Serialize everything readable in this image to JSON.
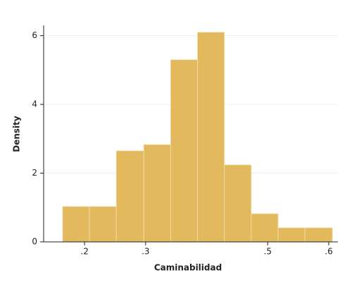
{
  "chart_data": {
    "type": "histogram",
    "xlabel": "Caminabilidad",
    "ylabel": "Density",
    "bins": [
      0.164,
      0.208,
      0.252,
      0.297,
      0.341,
      0.385,
      0.429,
      0.473,
      0.517,
      0.561,
      0.606
    ],
    "values": [
      1.03,
      1.03,
      2.65,
      2.83,
      5.3,
      6.1,
      2.24,
      0.82,
      0.41,
      0.41
    ],
    "color": "#e3b95e",
    "xlim": [
      0.133,
      0.615
    ],
    "xticks": [
      {
        "value": 0.2,
        "label": ".2"
      },
      {
        "value": 0.3,
        "label": ".3"
      },
      {
        "value": 0.5,
        "label": ".5"
      },
      {
        "value": 0.6,
        "label": ".6"
      }
    ],
    "ylim": [
      0,
      6.3
    ],
    "yticks": [
      0,
      2,
      4,
      6
    ],
    "grid": true
  }
}
